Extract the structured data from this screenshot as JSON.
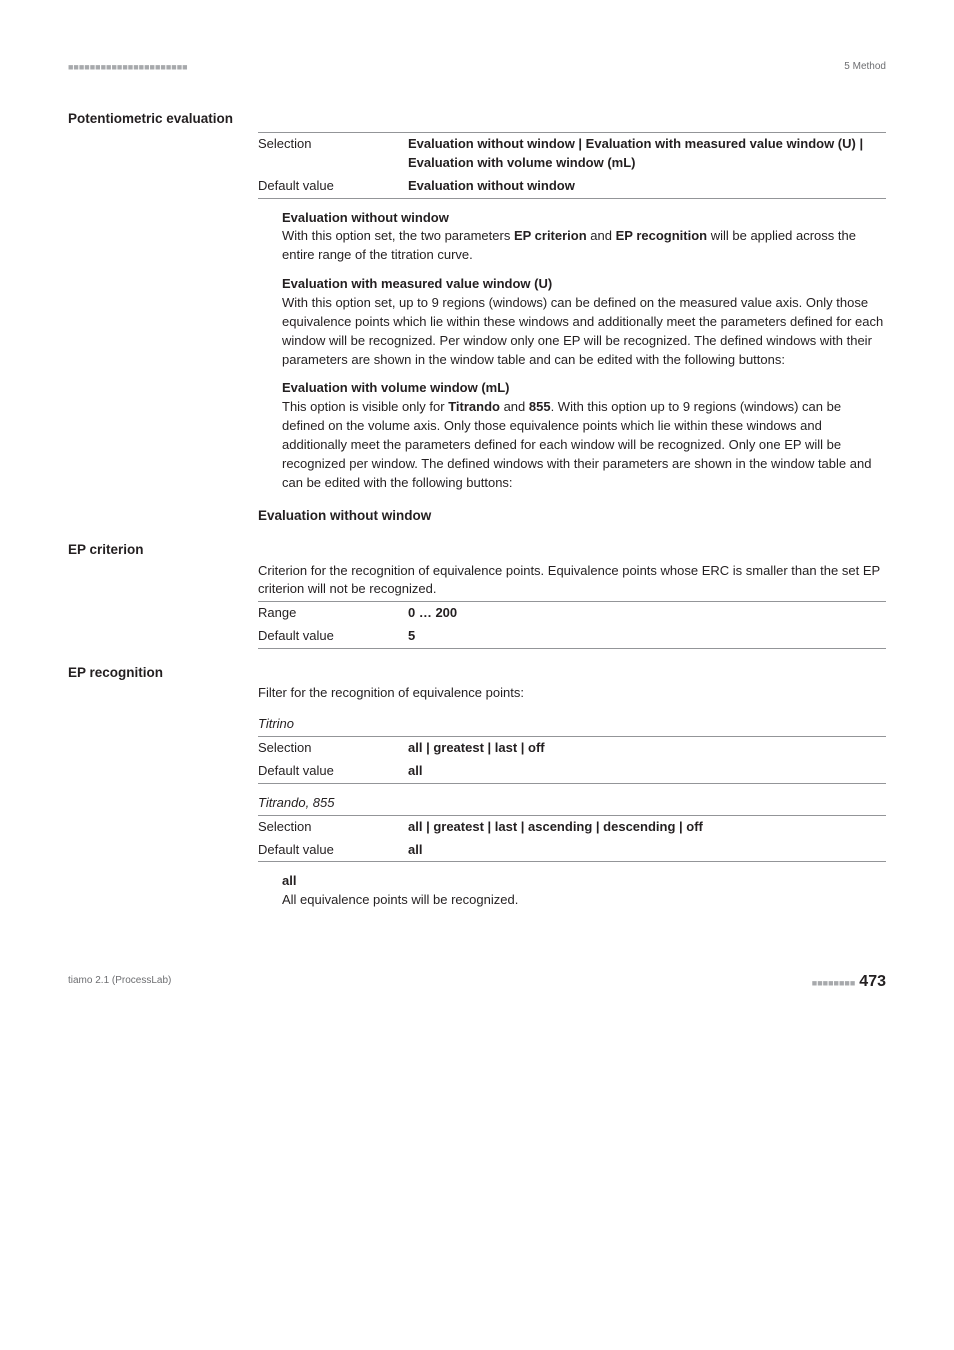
{
  "header": {
    "right": "5 Method"
  },
  "h1": "Potentiometric evaluation",
  "pe_table": {
    "selection_label": "Selection",
    "selection_value": "Evaluation without window | Evaluation with measured value window (U) | Evaluation with volume window (mL)",
    "default_label": "Default value",
    "default_value": "Evaluation without window"
  },
  "defs": [
    {
      "term": "Evaluation without window",
      "body": "With this option set, the two parameters <b>EP criterion</b> and <b>EP recognition</b> will be applied across the entire range of the titration curve."
    },
    {
      "term": "Evaluation with measured value window (U)",
      "body": "With this option set, up to 9 regions (windows) can be defined on the measured value axis. Only those equivalence points which lie within these windows and additionally meet the parameters defined for each window will be recognized. Per window only one EP will be recognized. The defined windows with their parameters are shown in the window table and can be edited with the following buttons:"
    },
    {
      "term": "Evaluation with volume window (mL)",
      "body": "This option is visible only for <b>Titrando</b> and <b>855</b>. With this option up to 9 regions (windows) can be defined on the volume axis. Only those equivalence points which lie within these windows and additionally meet the parameters defined for each window will be recognized. Only one EP will be recognized per window. The defined windows with their parameters are shown in the window table and can be edited with the following buttons:"
    }
  ],
  "sub_heading": "Evaluation without window",
  "ep_criterion": {
    "label": "EP criterion",
    "desc": "Criterion for the recognition of equivalence points. Equivalence points whose ERC is smaller than the set EP criterion will not be recognized.",
    "range_label": "Range",
    "range_value": "0 … 200",
    "default_label": "Default value",
    "default_value": "5"
  },
  "ep_recognition": {
    "label": "EP recognition",
    "desc": "Filter for the recognition of equivalence points:",
    "titrino_label": "Titrino",
    "titrino_sel_label": "Selection",
    "titrino_sel_value": "all | greatest | last | off",
    "titrino_def_label": "Default value",
    "titrino_def_value": "all",
    "titrando_label": "Titrando, 855",
    "titrando_sel_label": "Selection",
    "titrando_sel_value": "all | greatest | last | ascending | descending | off",
    "titrando_def_label": "Default value",
    "titrando_def_value": "all",
    "all_term": "all",
    "all_body": "All equivalence points will be recognized."
  },
  "footer": {
    "left": "tiamo 2.1 (ProcessLab)",
    "page": "473"
  }
}
